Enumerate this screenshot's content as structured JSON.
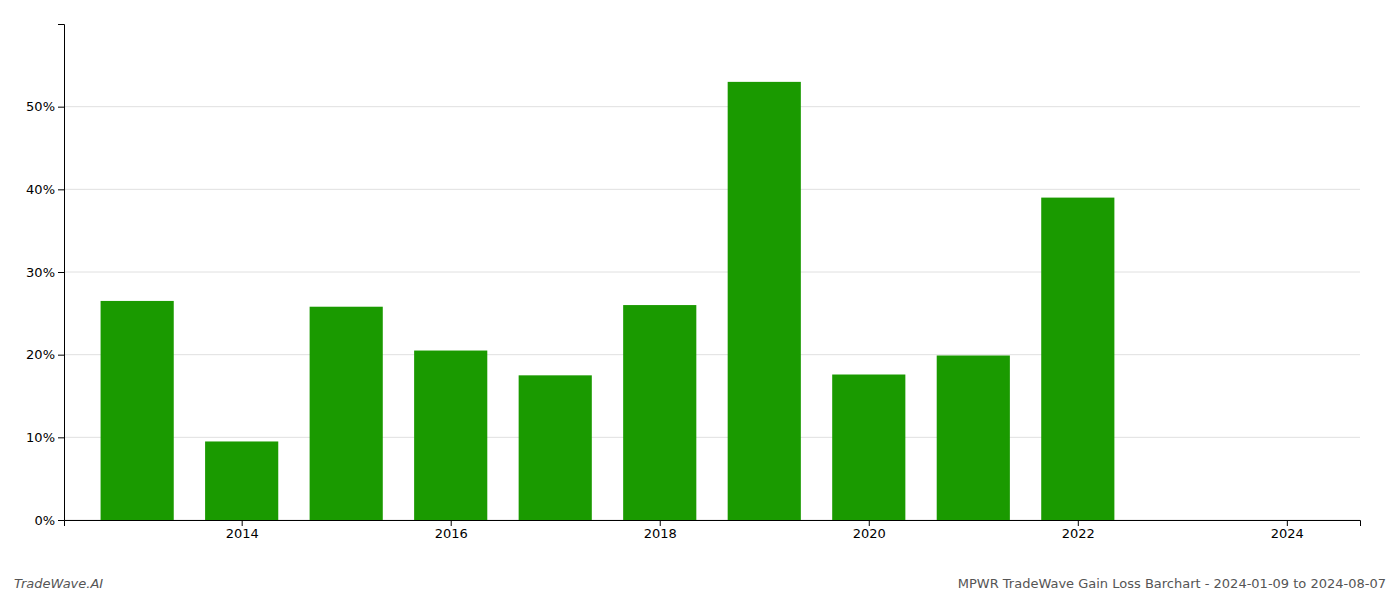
{
  "chart_data": {
    "type": "bar",
    "x": [
      2013,
      2014,
      2015,
      2016,
      2017,
      2018,
      2019,
      2020,
      2021,
      2022,
      2023
    ],
    "values": [
      0.265,
      0.095,
      0.258,
      0.205,
      0.175,
      0.26,
      0.53,
      0.176,
      0.199,
      0.39,
      0.0
    ],
    "color": "#1a9a00",
    "xlim": [
      2012.3,
      2024.7
    ],
    "ylim": [
      0,
      0.6
    ],
    "xticks": [
      2014,
      2016,
      2018,
      2020,
      2022,
      2024
    ],
    "yticks": [
      {
        "value": 0.0,
        "label": "0%"
      },
      {
        "value": 0.1,
        "label": "10%"
      },
      {
        "value": 0.2,
        "label": "20%"
      },
      {
        "value": 0.3,
        "label": "30%"
      },
      {
        "value": 0.4,
        "label": "40%"
      },
      {
        "value": 0.5,
        "label": "50%"
      }
    ],
    "grid": true,
    "annotations": [
      "TradeWave.AI",
      "MPWR TradeWave Gain Loss Barchart - 2024-01-09 to 2024-08-07"
    ]
  }
}
